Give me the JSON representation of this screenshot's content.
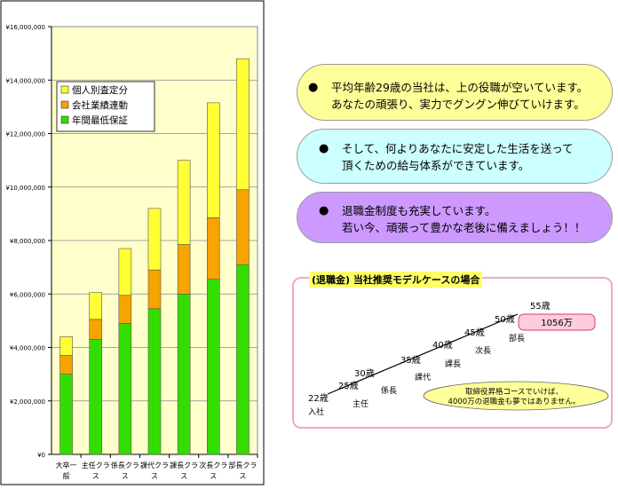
{
  "chart_data": {
    "type": "bar",
    "stacked": true,
    "categories": [
      "大卒一般",
      "主任クラス",
      "係長クラス",
      "課代クラス",
      "課長クラス",
      "次長クラス",
      "部長クラス"
    ],
    "category_lines": [
      [
        "大卒一",
        "般"
      ],
      [
        "主任クラ",
        "ス"
      ],
      [
        "係長クラ",
        "ス"
      ],
      [
        "課代クラ",
        "ス"
      ],
      [
        "課長クラ",
        "ス"
      ],
      [
        "次長クラ",
        "ス"
      ],
      [
        "部長クラ",
        "ス"
      ]
    ],
    "series": [
      {
        "name": "年間最低保証",
        "values": [
          3000000,
          4300000,
          4900000,
          5450000,
          6000000,
          6550000,
          7100000
        ]
      },
      {
        "name": "会社業績連動",
        "values": [
          700000,
          750000,
          1050000,
          1450000,
          1850000,
          2300000,
          2800000
        ]
      },
      {
        "name": "個人別査定分",
        "values": [
          700000,
          1000000,
          1750000,
          2300000,
          3150000,
          4300000,
          4900000
        ]
      }
    ],
    "ylim": [
      0,
      16000000
    ],
    "yticks": [
      0,
      2000000,
      4000000,
      6000000,
      8000000,
      10000000,
      12000000,
      14000000,
      16000000
    ],
    "ytick_labels": [
      "¥0",
      "¥2,000,000",
      "¥4,000,000",
      "¥6,000,000",
      "¥8,000,000",
      "¥10,000,000",
      "¥12,000,000",
      "¥14,000,000",
      "¥16,000,000"
    ],
    "grid": true,
    "legend_position": "top-left",
    "legend_order": [
      "個人別査定分",
      "会社業績連動",
      "年間最低保証"
    ],
    "colors": {
      "年間最低保証": "#33dd00",
      "会社業績連動": "#f5a400",
      "個人別査定分": "#ffff33",
      "plot_bg": "#ffffcc",
      "axis": "#888888"
    }
  },
  "bubbles": [
    {
      "dot": "●",
      "lines": [
        "平均年齢29歳の当社は、上の役職が空いています。",
        "あなたの頑張り、実力でグングン伸びていけます。"
      ]
    },
    {
      "dot": "●",
      "lines": [
        "そして、何よりあなたに安定した生活を送って",
        "頂くための給与体系ができています。"
      ]
    },
    {
      "dot": "●",
      "lines": [
        "退職金制度も充実しています。",
        "若い今、頑張って豊かな老後に備えましょう！！"
      ]
    }
  ],
  "model": {
    "title": "(退職金) 当社推奨モデルケースの場合",
    "steps": [
      {
        "age": "22歳",
        "role": "入社"
      },
      {
        "age": "25歳",
        "role": "主任"
      },
      {
        "age": "30歳",
        "role": "係長"
      },
      {
        "age": "35歳",
        "role": "課代"
      },
      {
        "age": "40歳",
        "role": "課長"
      },
      {
        "age": "45歳",
        "role": "次長"
      },
      {
        "age": "50歳",
        "role": "部長"
      },
      {
        "age": "55歳",
        "role": ""
      }
    ],
    "amount": "1056万",
    "note": [
      "取締役昇格コースでいけば、",
      "4000万の退職金も夢ではありません。"
    ],
    "colors": {
      "amount_bg": "#ffccdd",
      "amount_border": "#d63a7a",
      "note_bg": "#ffff99",
      "frame": "#f4a6c8"
    }
  }
}
